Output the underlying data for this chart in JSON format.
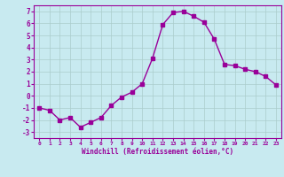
{
  "x": [
    0,
    1,
    2,
    3,
    4,
    5,
    6,
    7,
    8,
    9,
    10,
    11,
    12,
    13,
    14,
    15,
    16,
    17,
    18,
    19,
    20,
    21,
    22,
    23
  ],
  "y": [
    -1.0,
    -1.2,
    -2.0,
    -1.8,
    -2.6,
    -2.2,
    -1.8,
    -0.8,
    -0.1,
    0.3,
    1.0,
    3.1,
    5.9,
    6.9,
    7.0,
    6.6,
    6.1,
    4.7,
    2.6,
    2.5,
    2.2,
    2.0,
    1.6,
    0.9
  ],
  "line_color": "#990099",
  "marker": "s",
  "markersize": 2.5,
  "linewidth": 1.0,
  "bg_color": "#c8eaf0",
  "grid_color": "#aacccc",
  "xlabel": "Windchill (Refroidissement éolien,°C)",
  "xlabel_color": "#990099",
  "tick_color": "#990099",
  "xlim": [
    -0.5,
    23.5
  ],
  "ylim": [
    -3.5,
    7.5
  ],
  "yticks": [
    -3,
    -2,
    -1,
    0,
    1,
    2,
    3,
    4,
    5,
    6,
    7
  ],
  "xticks": [
    0,
    1,
    2,
    3,
    4,
    5,
    6,
    7,
    8,
    9,
    10,
    11,
    12,
    13,
    14,
    15,
    16,
    17,
    18,
    19,
    20,
    21,
    22,
    23
  ]
}
